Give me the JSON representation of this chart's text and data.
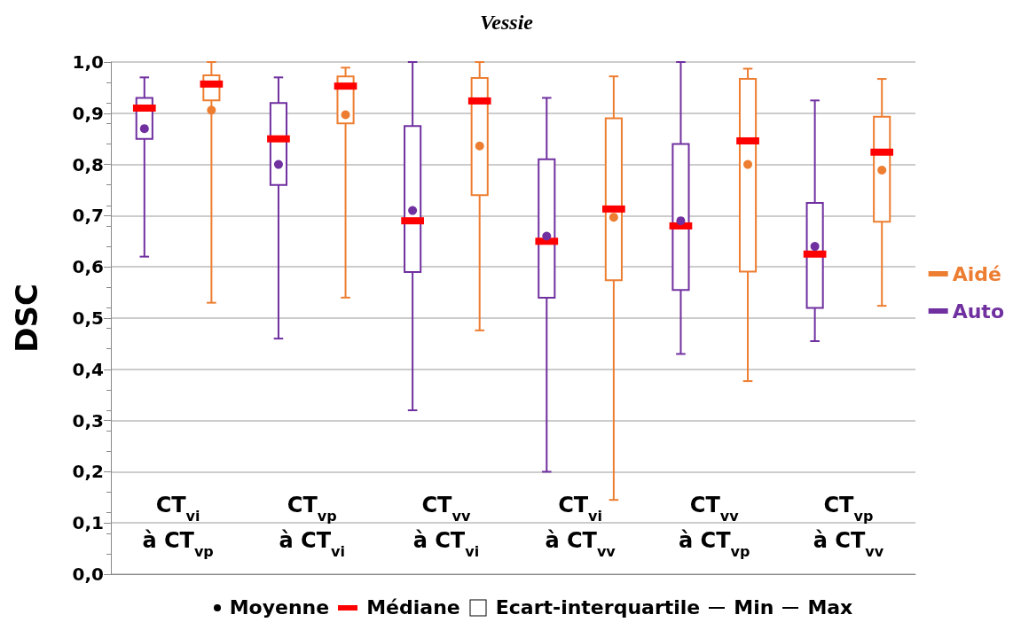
{
  "chart_data": {
    "type": "box",
    "title": "Vessie",
    "ylabel": "DSC",
    "categories": [
      "CT$_{vi}$\nà CT$_{vp}$",
      "CT$_{vp}$\nà CT$_{vi}$",
      "CT$_{vv}$\nà CT$_{vi}$",
      "CT$_{vi}$\nà CT$_{vv}$",
      "CT$_{vv}$\nà CT$_{vp}$",
      "CT$_{vp}$\nà CT$_{vv}$"
    ],
    "series": [
      {
        "name": "Auto",
        "color": "#7030a0",
        "boxes": [
          {
            "low": 0.62,
            "q1": 0.85,
            "median": 0.91,
            "q3": 0.93,
            "high": 0.97,
            "mean": 0.87
          },
          {
            "low": 0.46,
            "q1": 0.76,
            "median": 0.85,
            "q3": 0.92,
            "high": 0.97,
            "mean": 0.8
          },
          {
            "low": 0.32,
            "q1": 0.59,
            "median": 0.69,
            "q3": 0.875,
            "high": 1.0,
            "mean": 0.71
          },
          {
            "low": 0.2,
            "q1": 0.54,
            "median": 0.65,
            "q3": 0.81,
            "high": 0.93,
            "mean": 0.66
          },
          {
            "low": 0.43,
            "q1": 0.555,
            "median": 0.68,
            "q3": 0.84,
            "high": 1.0,
            "mean": 0.69
          },
          {
            "low": 0.455,
            "q1": 0.52,
            "median": 0.625,
            "q3": 0.725,
            "high": 0.925,
            "mean": 0.64
          }
        ]
      },
      {
        "name": "Aidé",
        "color": "#ed7d31",
        "boxes": [
          {
            "low": 0.53,
            "q1": 0.925,
            "median": 0.957,
            "q3": 0.974,
            "high": 1.0,
            "mean": 0.906
          },
          {
            "low": 0.54,
            "q1": 0.88,
            "median": 0.953,
            "q3": 0.972,
            "high": 0.989,
            "mean": 0.897
          },
          {
            "low": 0.476,
            "q1": 0.74,
            "median": 0.924,
            "q3": 0.969,
            "high": 1.0,
            "mean": 0.836
          },
          {
            "low": 0.145,
            "q1": 0.574,
            "median": 0.713,
            "q3": 0.89,
            "high": 0.972,
            "mean": 0.697
          },
          {
            "low": 0.377,
            "q1": 0.591,
            "median": 0.846,
            "q3": 0.967,
            "high": 0.987,
            "mean": 0.8
          },
          {
            "low": 0.524,
            "q1": 0.688,
            "median": 0.824,
            "q3": 0.893,
            "high": 0.967,
            "mean": 0.789
          }
        ]
      }
    ],
    "ylim": [
      0,
      1
    ],
    "yticks": [
      {
        "value": 0,
        "label": "0,0"
      },
      {
        "value": 0.1,
        "label": "0,1"
      },
      {
        "value": 0.2,
        "label": "0,2"
      },
      {
        "value": 0.3,
        "label": "0,3"
      },
      {
        "value": 0.4,
        "label": "0,4"
      },
      {
        "value": 0.5,
        "label": "0,5"
      },
      {
        "value": 0.6,
        "label": "0,6"
      },
      {
        "value": 0.7,
        "label": "0,7"
      },
      {
        "value": 0.8,
        "label": "0,8"
      },
      {
        "value": 0.9,
        "label": "0,9"
      },
      {
        "value": 1,
        "label": "1,0"
      }
    ],
    "grid": "y",
    "legend": "right",
    "annotations": [
      "Moyenne",
      "Médiane",
      "Ecart-interquartile",
      "Min",
      "Max"
    ]
  }
}
